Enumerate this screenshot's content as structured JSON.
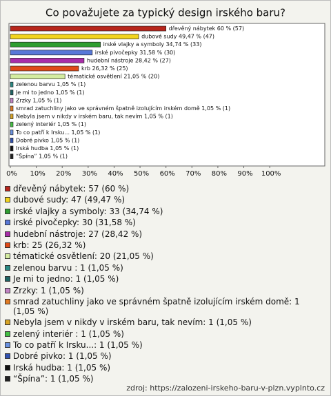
{
  "chart_data": {
    "type": "bar",
    "orientation": "horizontal",
    "title": "Co považujete za typický design irského baru?",
    "values": [
      60,
      49.47,
      34.74,
      31.58,
      28.42,
      26.32,
      21.05,
      1.05,
      1.05,
      1.05,
      1.05,
      1.05,
      1.05,
      1.05,
      1.05,
      1.05,
      1.05
    ],
    "value_labels": [
      "dřevěný nábytek 60 % (57)",
      "dubové sudy 49,47 % (47)",
      "irské vlajky a symboly 34,74 % (33)",
      "irské pivočepky 31,58 % (30)",
      "hudební nástroje 28,42 % (27)",
      "krb 26,32 % (25)",
      "tématické osvětlení 21,05 % (20)",
      "zelenou barvu  1,05 % (1)",
      "Je mi to jedno 1,05 % (1)",
      "Zrzky 1,05 % (1)",
      "smrad zatuchliny jako ve správném špatně izolujícím irském domě 1,05 % (1)",
      "Nebyla jsem v nikdy v irském baru, tak nevím 1,05 % (1)",
      "zelený interiér  1,05 % (1)",
      "To co patří k Irsku... 1,05 % (1)",
      "Dobré pivko 1,05 % (1)",
      "Irská hudba 1,05 % (1)",
      "“Špína” 1,05 % (1)"
    ],
    "legend_labels": [
      "dřevěný nábytek: 57 (60 %)",
      "dubové sudy: 47 (49,47 %)",
      "irské vlajky a symboly: 33 (34,74 %)",
      "irské pivočepky: 30 (31,58 %)",
      "hudební nástroje: 27 (28,42 %)",
      "krb: 25 (26,32 %)",
      "tématické osvětlení: 20 (21,05 %)",
      "zelenou barvu : 1 (1,05 %)",
      "Je mi to jedno: 1 (1,05 %)",
      "Zrzky: 1 (1,05 %)",
      "smrad zatuchliny jako ve správném špatně izolujícím irském domě: 1 (1,05 %)",
      "Nebyla jsem v nikdy v irském baru, tak nevím: 1 (1,05 %)",
      "zelený interiér : 1 (1,05 %)",
      "To co patří k Irsku...: 1 (1,05 %)",
      "Dobré pivko: 1 (1,05 %)",
      "Irská hudba: 1 (1,05 %)",
      "“Špína”: 1 (1,05 %)"
    ],
    "colors": [
      "#b8261c",
      "#f2d41e",
      "#2f9e30",
      "#5878d8",
      "#a82ea8",
      "#e04a18",
      "#d4ecA0",
      "#2a8a84",
      "#1f6464",
      "#c284c4",
      "#e07a22",
      "#d8a424",
      "#44c044",
      "#6a92e0",
      "#3252b0",
      "#111111",
      "#222222"
    ],
    "xlim": [
      0,
      120.7
    ],
    "xticks": [
      {
        "value": 0,
        "label": "0%"
      },
      {
        "value": 10,
        "label": "10%"
      },
      {
        "value": 20,
        "label": "20%"
      },
      {
        "value": 30,
        "label": "30%"
      },
      {
        "value": 40,
        "label": "40%"
      },
      {
        "value": 50,
        "label": "50%"
      },
      {
        "value": 60,
        "label": "60%"
      },
      {
        "value": 70,
        "label": "70%"
      },
      {
        "value": 80,
        "label": "80%"
      },
      {
        "value": 90,
        "label": "90%"
      },
      {
        "value": 100,
        "label": "100%"
      }
    ],
    "source": "zdroj: https://zalozeni-irskeho-baru-v-plzn.vyplnto.cz"
  }
}
